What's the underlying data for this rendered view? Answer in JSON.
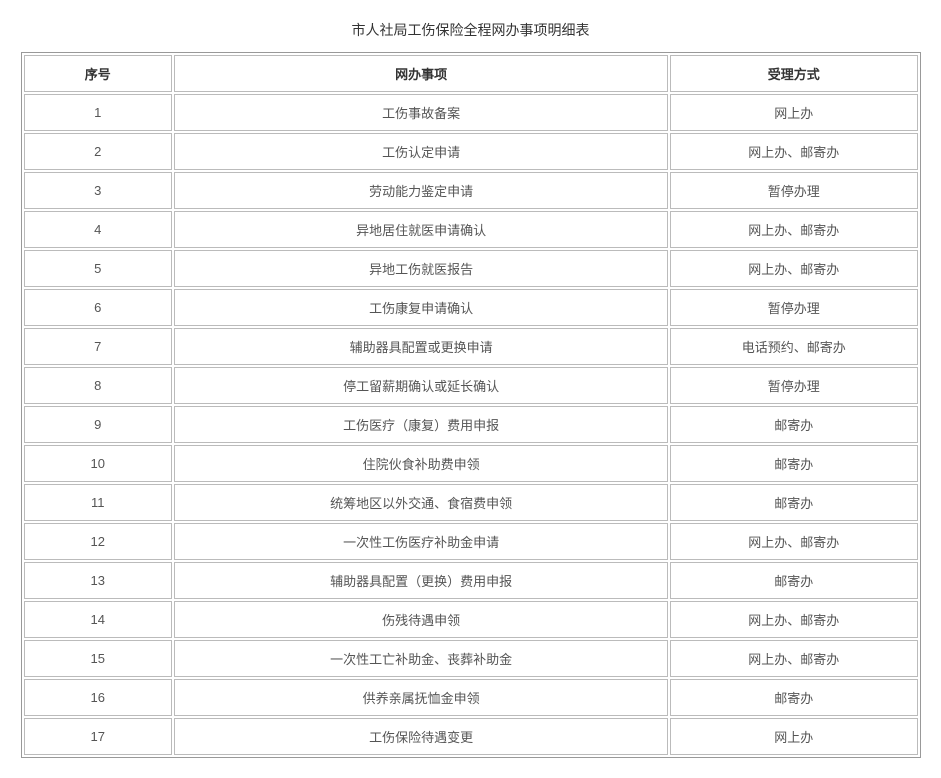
{
  "title": "市人社局工伤保险全程网办事项明细表",
  "table": {
    "columns": [
      {
        "key": "index",
        "label": "序号"
      },
      {
        "key": "item",
        "label": "网办事项"
      },
      {
        "key": "method",
        "label": "受理方式"
      }
    ],
    "rows": [
      {
        "index": "1",
        "item": "工伤事故备案",
        "method": "网上办"
      },
      {
        "index": "2",
        "item": "工伤认定申请",
        "method": "网上办、邮寄办"
      },
      {
        "index": "3",
        "item": "劳动能力鉴定申请",
        "method": "暂停办理"
      },
      {
        "index": "4",
        "item": "异地居住就医申请确认",
        "method": "网上办、邮寄办"
      },
      {
        "index": "5",
        "item": "异地工伤就医报告",
        "method": "网上办、邮寄办"
      },
      {
        "index": "6",
        "item": "工伤康复申请确认",
        "method": "暂停办理"
      },
      {
        "index": "7",
        "item": "辅助器具配置或更换申请",
        "method": "电话预约、邮寄办"
      },
      {
        "index": "8",
        "item": "停工留薪期确认或延长确认",
        "method": "暂停办理"
      },
      {
        "index": "9",
        "item": "工伤医疗（康复）费用申报",
        "method": "邮寄办"
      },
      {
        "index": "10",
        "item": "住院伙食补助费申领",
        "method": "邮寄办"
      },
      {
        "index": "11",
        "item": "统筹地区以外交通、食宿费申领",
        "method": "邮寄办"
      },
      {
        "index": "12",
        "item": "一次性工伤医疗补助金申请",
        "method": "网上办、邮寄办"
      },
      {
        "index": "13",
        "item": "辅助器具配置（更换）费用申报",
        "method": "邮寄办"
      },
      {
        "index": "14",
        "item": "伤残待遇申领",
        "method": "网上办、邮寄办"
      },
      {
        "index": "15",
        "item": "一次性工亡补助金、丧葬补助金",
        "method": "网上办、邮寄办"
      },
      {
        "index": "16",
        "item": "供养亲属抚恤金申领",
        "method": "邮寄办"
      },
      {
        "index": "17",
        "item": "工伤保险待遇变更",
        "method": "网上办"
      }
    ]
  },
  "style": {
    "background_color": "#ffffff",
    "text_color": "#555555",
    "header_text_color": "#333333",
    "border_outer_color": "#999999",
    "border_inner_color": "#bbbbbb",
    "title_fontsize": 14,
    "cell_fontsize": 13,
    "container_width": 900
  }
}
